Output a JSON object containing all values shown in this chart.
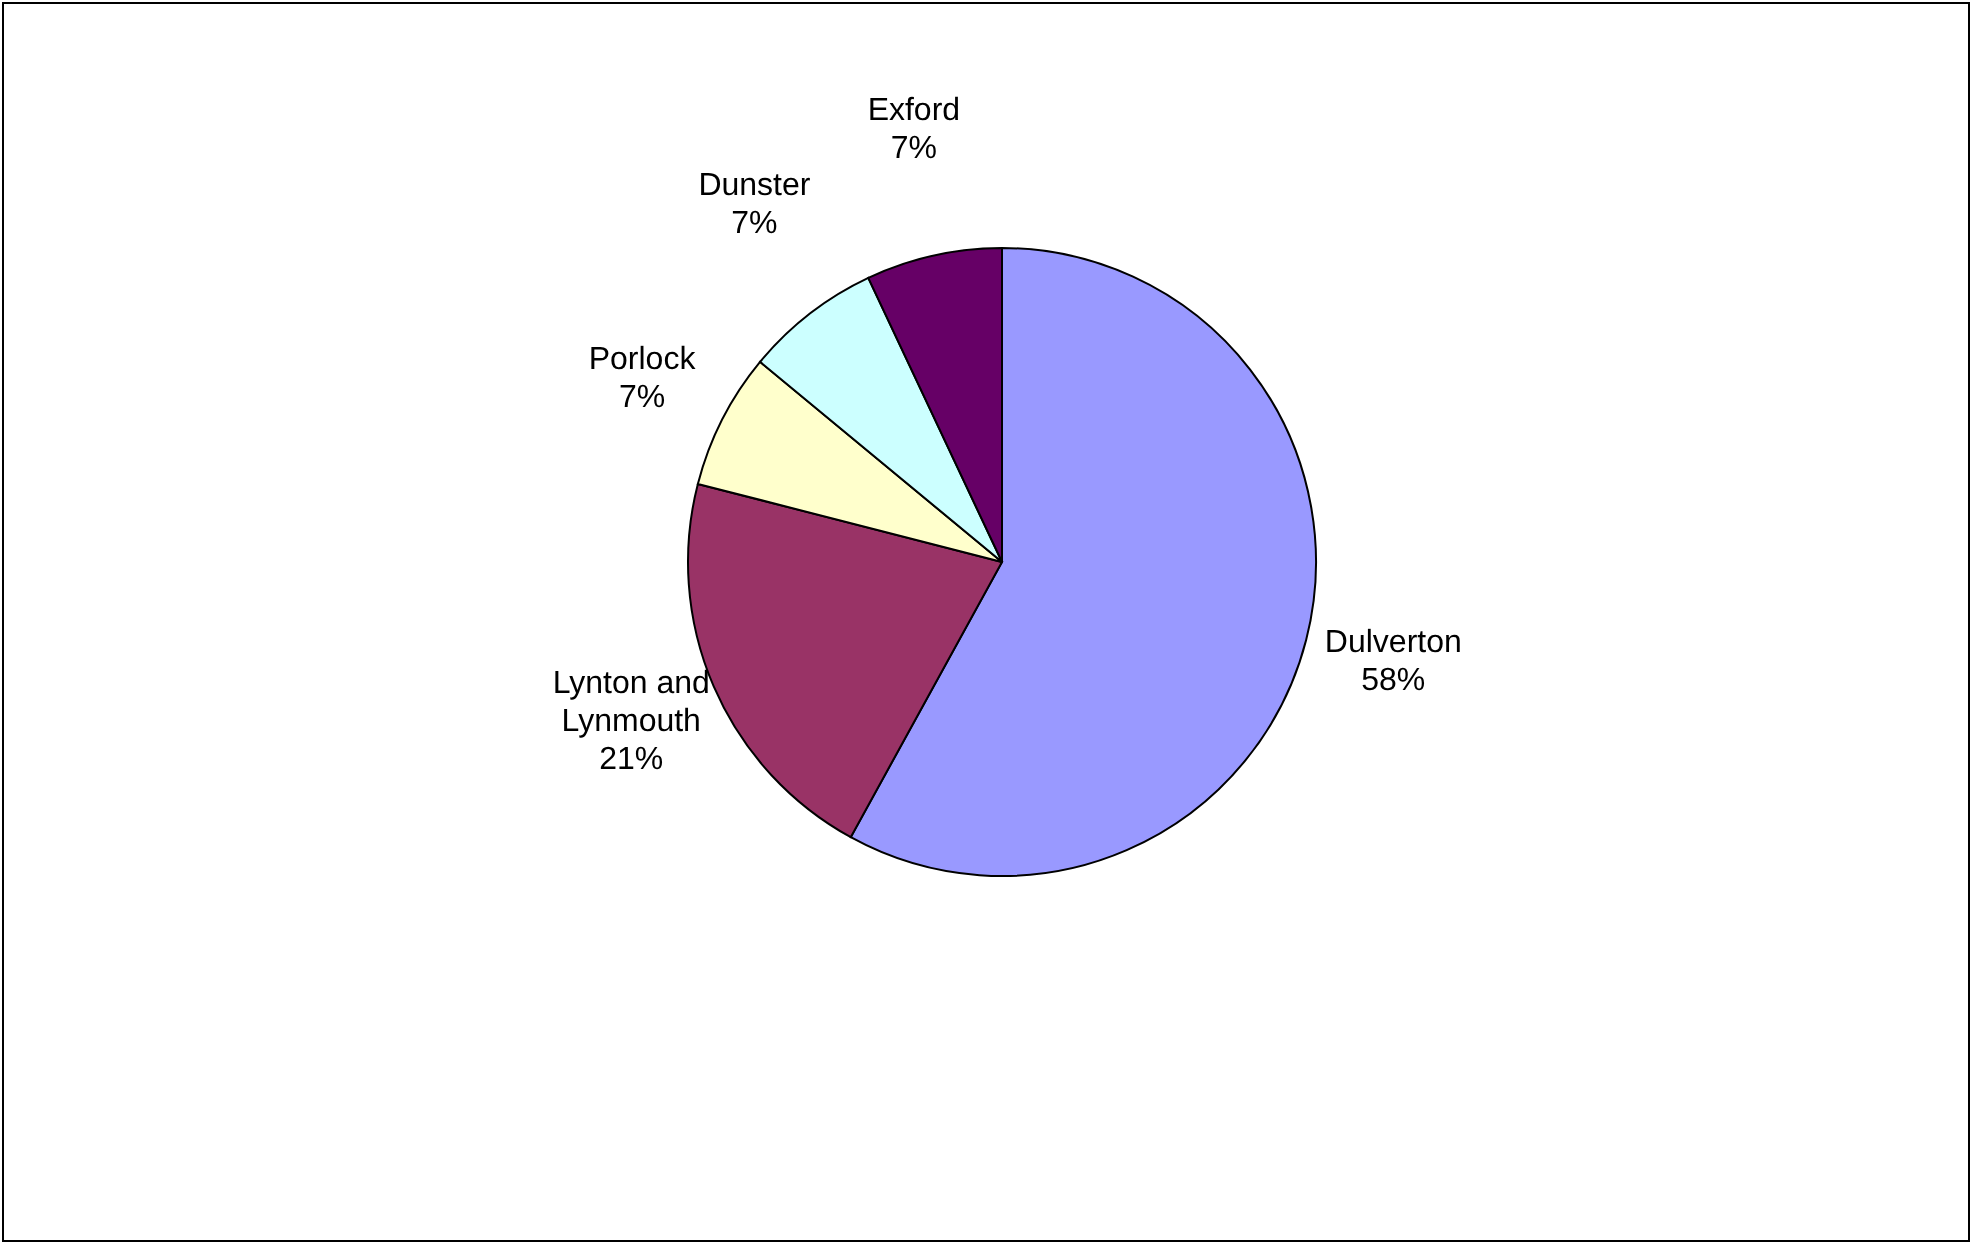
{
  "chart_data": {
    "type": "pie",
    "categories": [
      "Dulverton",
      "Lynton and Lynmouth",
      "Porlock",
      "Dunster",
      "Exford"
    ],
    "values": [
      58,
      21,
      7,
      7,
      7
    ],
    "value_labels": [
      "58%",
      "21%",
      "7%",
      "7%",
      "7%"
    ],
    "colors": [
      "#9999ff",
      "#993366",
      "#ffffcc",
      "#ccffff",
      "#660066"
    ]
  }
}
